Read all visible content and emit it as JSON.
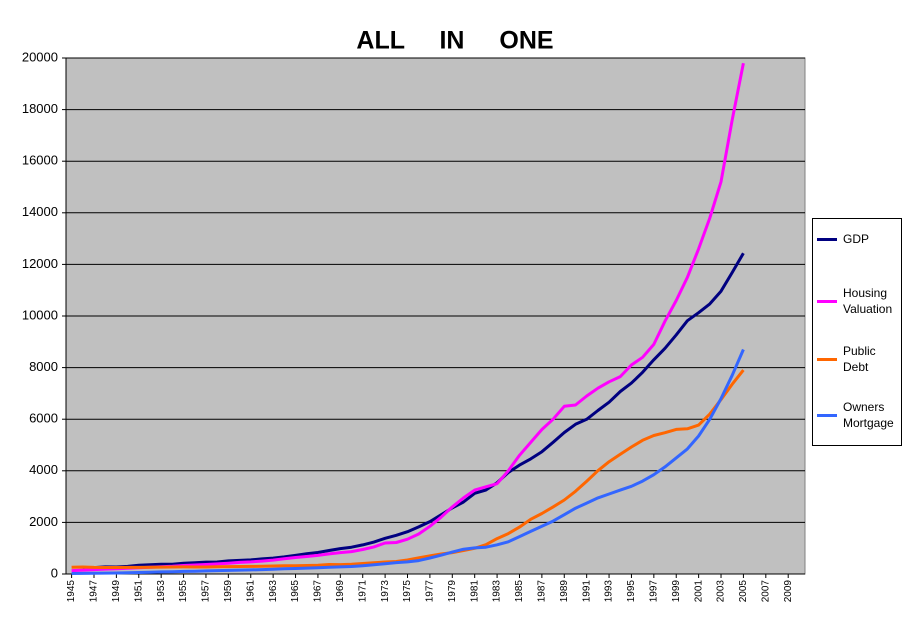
{
  "chart_data": {
    "type": "line",
    "title": "ALL IN ONE",
    "x": [
      1945,
      1946,
      1947,
      1948,
      1949,
      1950,
      1951,
      1952,
      1953,
      1954,
      1955,
      1956,
      1957,
      1958,
      1959,
      1960,
      1961,
      1962,
      1963,
      1964,
      1965,
      1966,
      1967,
      1968,
      1969,
      1970,
      1971,
      1972,
      1973,
      1974,
      1975,
      1976,
      1977,
      1978,
      1979,
      1980,
      1981,
      1982,
      1983,
      1984,
      1985,
      1986,
      1987,
      1988,
      1989,
      1990,
      1991,
      1992,
      1993,
      1994,
      1995,
      1996,
      1997,
      1998,
      1999,
      2000,
      2001,
      2002,
      2003,
      2004,
      2005
    ],
    "series": [
      {
        "name": "GDP",
        "color": "#000080",
        "values": [
          null,
          227,
          249,
          274,
          272,
          294,
          339,
          358,
          379,
          381,
          415,
          438,
          461,
          467,
          507,
          526,
          545,
          586,
          618,
          664,
          719,
          788,
          833,
          910,
          985,
          1038,
          1127,
          1238,
          1383,
          1500,
          1638,
          1825,
          2031,
          2295,
          2563,
          2790,
          3128,
          3255,
          3537,
          3933,
          4220,
          4463,
          4740,
          5104,
          5484,
          5803,
          5996,
          6338,
          6657,
          7072,
          7398,
          7817,
          8304,
          8747,
          9268,
          9817,
          10128,
          10470,
          10961,
          11686,
          12434
        ]
      },
      {
        "name": "Housing Valuation",
        "color": "#ff00ff",
        "values": [
          130,
          150,
          170,
          190,
          200,
          220,
          240,
          260,
          280,
          300,
          330,
          350,
          370,
          390,
          420,
          450,
          470,
          500,
          540,
          590,
          640,
          680,
          720,
          780,
          830,
          870,
          950,
          1050,
          1200,
          1220,
          1350,
          1550,
          1850,
          2200,
          2600,
          2950,
          3250,
          3380,
          3500,
          4000,
          4600,
          5100,
          5600,
          6000,
          6500,
          6550,
          6900,
          7200,
          7450,
          7650,
          8100,
          8400,
          8900,
          9800,
          10600,
          11500,
          12600,
          13800,
          15200,
          17600,
          19800
        ]
      },
      {
        "name": "Public Debt",
        "color": "#ff6600",
        "values": [
          260,
          271,
          257,
          252,
          253,
          257,
          255,
          259,
          266,
          271,
          274,
          273,
          272,
          280,
          287,
          291,
          293,
          303,
          310,
          316,
          322,
          328,
          340,
          368,
          365,
          381,
          408,
          436,
          466,
          484,
          542,
          629,
          706,
          777,
          829,
          909,
          995,
          1137,
          1372,
          1565,
          1818,
          2121,
          2346,
          2601,
          2868,
          3206,
          3598,
          4002,
          4351,
          4643,
          4921,
          5181,
          5369,
          5478,
          5606,
          5629,
          5770,
          6198,
          6760,
          7355,
          7905
        ]
      },
      {
        "name": "Owners Mortgage",
        "color": "#3366ff",
        "values": [
          20,
          25,
          30,
          35,
          40,
          50,
          60,
          70,
          80,
          90,
          100,
          110,
          120,
          130,
          140,
          150,
          160,
          170,
          185,
          200,
          215,
          230,
          245,
          260,
          275,
          290,
          320,
          360,
          400,
          440,
          470,
          520,
          620,
          730,
          850,
          960,
          1010,
          1040,
          1130,
          1250,
          1450,
          1650,
          1850,
          2050,
          2300,
          2550,
          2750,
          2950,
          3100,
          3250,
          3400,
          3600,
          3850,
          4150,
          4500,
          4850,
          5350,
          6000,
          6800,
          7700,
          8700
        ]
      }
    ],
    "xlim": [
      1944.5,
      2010.5
    ],
    "xticks": [
      1945,
      1947,
      1949,
      1951,
      1953,
      1955,
      1957,
      1959,
      1961,
      1963,
      1965,
      1967,
      1969,
      1971,
      1973,
      1975,
      1977,
      1979,
      1981,
      1983,
      1985,
      1987,
      1989,
      1991,
      1993,
      1995,
      1997,
      1999,
      2001,
      2003,
      2005,
      2007,
      2009
    ],
    "ylim": [
      0,
      20000
    ],
    "yticks": [
      0,
      2000,
      4000,
      6000,
      8000,
      10000,
      12000,
      14000,
      16000,
      18000,
      20000
    ],
    "grid": true,
    "legend": "right"
  }
}
